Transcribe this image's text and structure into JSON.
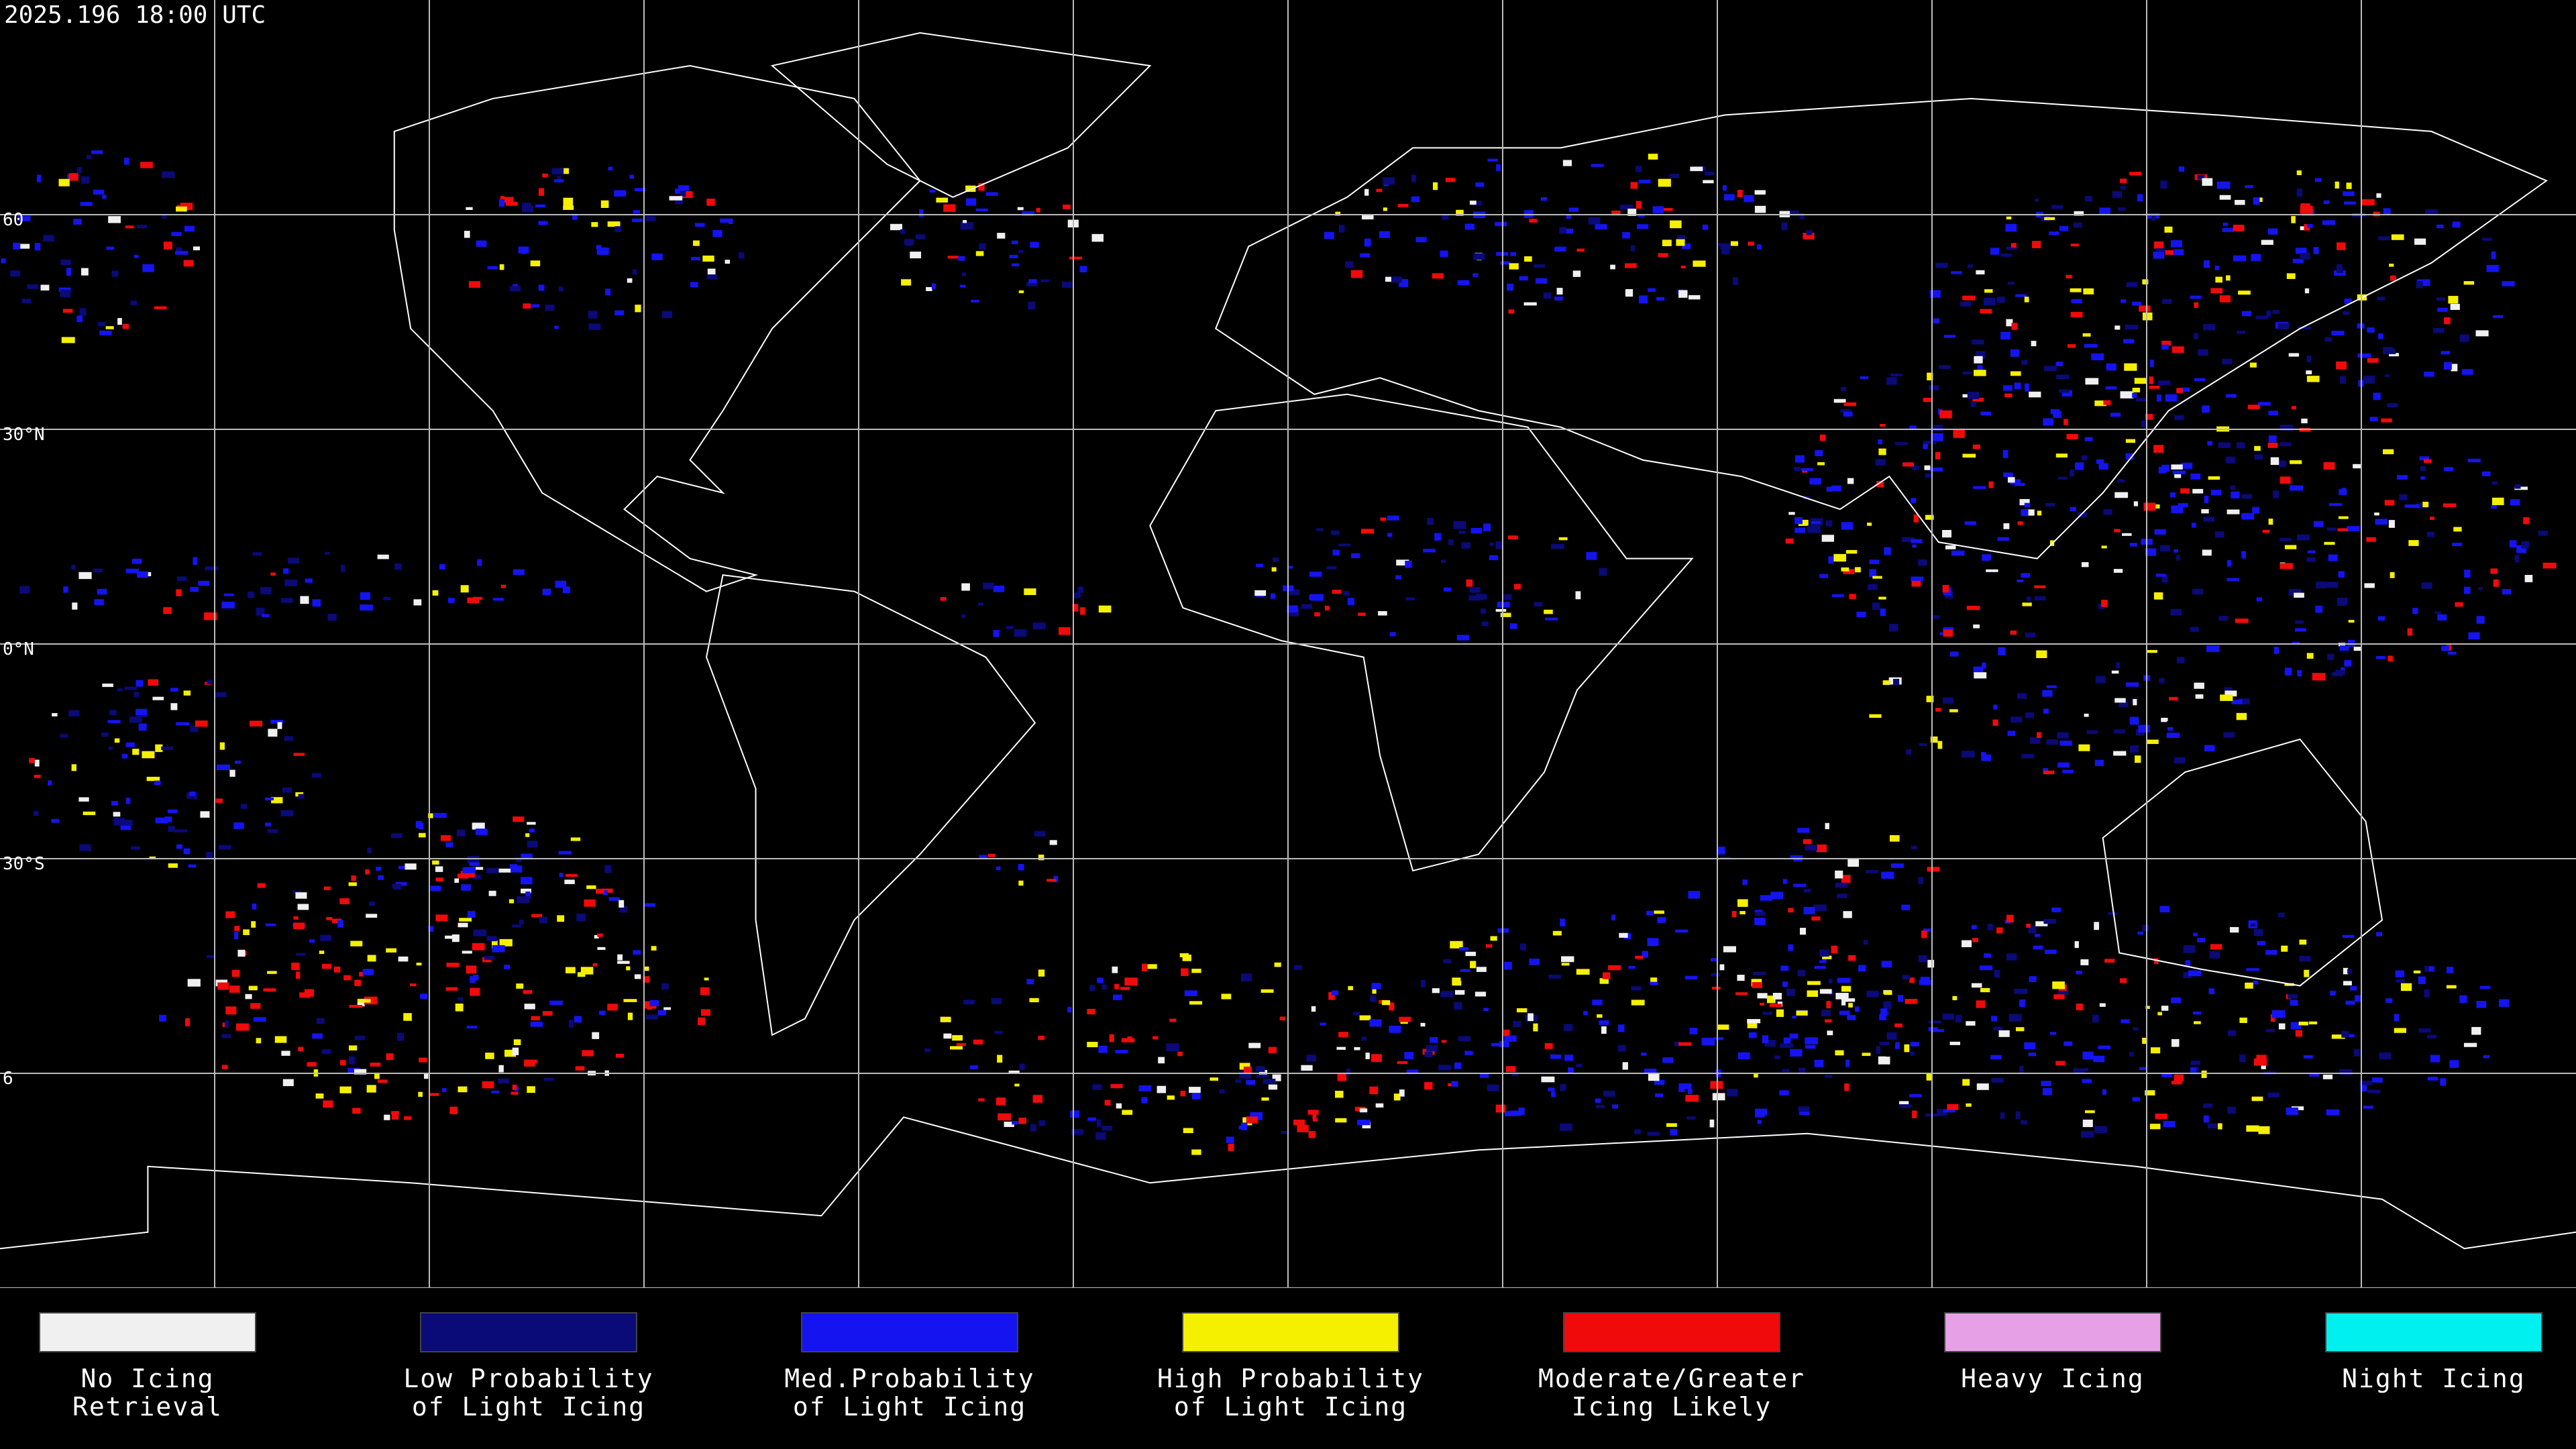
{
  "header": {
    "timestamp": "2025.196 18:00 UTC"
  },
  "latitude_labels": [
    "60",
    "30°N",
    "0°N",
    "30°S",
    "6"
  ],
  "legend": [
    {
      "color": "#f0f0f0",
      "lines": [
        "No Icing",
        "Retrieval"
      ]
    },
    {
      "color": "#0a0a78",
      "lines": [
        "Low Probability",
        "of Light Icing"
      ]
    },
    {
      "color": "#1414f0",
      "lines": [
        "Med.Probability",
        "of Light Icing"
      ]
    },
    {
      "color": "#f5f000",
      "lines": [
        "High Probability",
        "of Light Icing"
      ]
    },
    {
      "color": "#f00a0a",
      "lines": [
        "Moderate/Greater",
        "Icing Likely"
      ]
    },
    {
      "color": "#e6a0e6",
      "lines": [
        "Heavy Icing"
      ]
    },
    {
      "color": "#00f0f0",
      "lines": [
        "Night Icing"
      ]
    }
  ]
}
